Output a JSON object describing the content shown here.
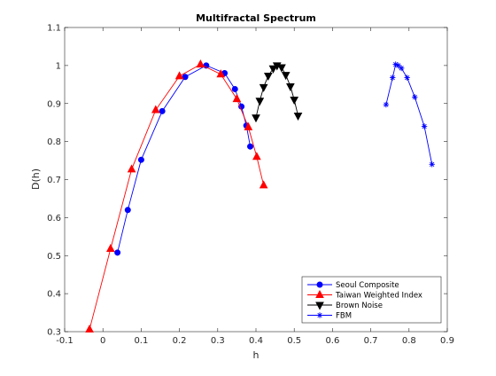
{
  "chart_data": {
    "type": "line",
    "title": "Multifractal Spectrum",
    "xlabel": "h",
    "ylabel": "D(h)",
    "xlim": [
      -0.1,
      0.9
    ],
    "ylim": [
      0.3,
      1.1
    ],
    "xticks": [
      "-0.1",
      "0",
      "0.1",
      "0.2",
      "0.3",
      "0.4",
      "0.5",
      "0.6",
      "0.7",
      "0.8",
      "0.9"
    ],
    "yticks": [
      "0.3",
      "0.4",
      "0.5",
      "0.6",
      "0.7",
      "0.8",
      "0.9",
      "1",
      "1.1"
    ],
    "grid": false,
    "legend_position": "bottom-right",
    "series": [
      {
        "name": "Seoul Composite",
        "color": "#0000ff",
        "marker": "filled-circle",
        "x": [
          0.038,
          0.065,
          0.1,
          0.155,
          0.215,
          0.27,
          0.318,
          0.345,
          0.362,
          0.375,
          0.385
        ],
        "y": [
          0.508,
          0.62,
          0.752,
          0.88,
          0.97,
          1.0,
          0.98,
          0.938,
          0.892,
          0.842,
          0.787
        ]
      },
      {
        "name": "Taiwan Weighted Index",
        "color": "#ff0000",
        "marker": "filled-triangle-up",
        "x": [
          -0.035,
          0.02,
          0.075,
          0.138,
          0.2,
          0.255,
          0.308,
          0.35,
          0.38,
          0.402,
          0.42
        ],
        "y": [
          0.306,
          0.518,
          0.727,
          0.883,
          0.972,
          1.003,
          0.977,
          0.912,
          0.838,
          0.76,
          0.685
        ]
      },
      {
        "name": "Brown Noise",
        "color": "#000000",
        "marker": "filled-triangle-down",
        "x": [
          0.4,
          0.41,
          0.42,
          0.432,
          0.445,
          0.455,
          0.467,
          0.478,
          0.49,
          0.5,
          0.51
        ],
        "y": [
          0.863,
          0.907,
          0.943,
          0.973,
          0.992,
          1.0,
          0.995,
          0.975,
          0.945,
          0.91,
          0.868
        ]
      },
      {
        "name": "FBM",
        "color": "#0000ff",
        "marker": "asterisk",
        "x": [
          0.74,
          0.757,
          0.765,
          0.772,
          0.78,
          0.795,
          0.815,
          0.84,
          0.86
        ],
        "y": [
          0.897,
          0.968,
          1.003,
          1.0,
          0.993,
          0.968,
          0.917,
          0.84,
          0.74
        ]
      }
    ]
  }
}
